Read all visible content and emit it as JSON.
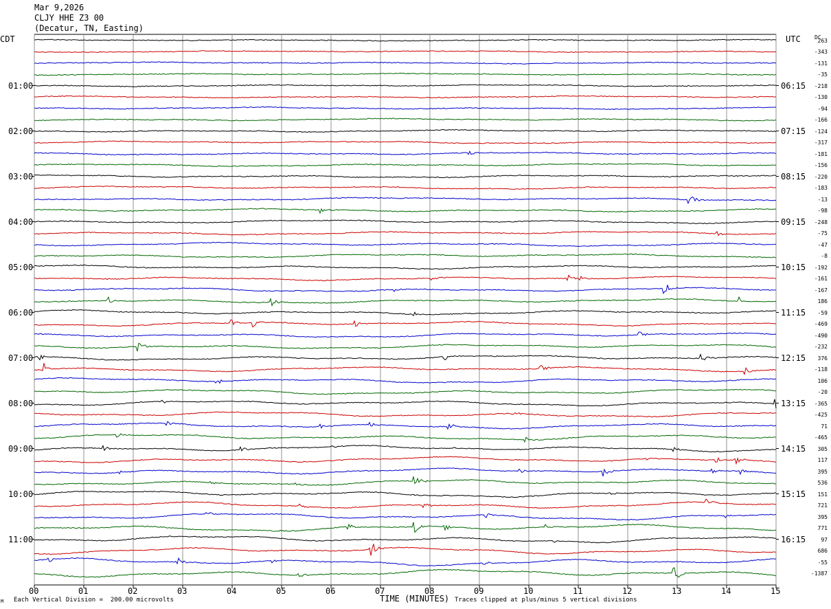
{
  "header": {
    "date": "Mar 9,2026",
    "station": "CLJY HHE Z3 00",
    "location": "(Decatur, TN, Easting)"
  },
  "left_tz": "CDT",
  "right_tz": "UTC",
  "dc_label": "DC",
  "footer": {
    "scale_note": "Each Vertical Division =  200.00 microvolts",
    "clip_note": "Traces clipped at plus/minus 5 vertical divisions",
    "mark": "M"
  },
  "colors": {
    "trace_cycle": [
      "#000000",
      "#cc0000",
      "#0000cc",
      "#006600"
    ],
    "grid": "#909090"
  },
  "chart_data": {
    "type": "line",
    "xlabel": "TIME (MINUTES)",
    "x_ticks": [
      "00",
      "01",
      "02",
      "03",
      "04",
      "05",
      "06",
      "07",
      "08",
      "09",
      "10",
      "11",
      "12",
      "13",
      "14",
      "15"
    ],
    "xlim": [
      0,
      15
    ],
    "left_hour_labels": [
      "01:00",
      "02:00",
      "03:00",
      "04:00",
      "05:00",
      "06:00",
      "07:00",
      "08:00",
      "09:00",
      "10:00",
      "11:00"
    ],
    "right_hour_labels": [
      "06:15",
      "07:15",
      "08:15",
      "09:15",
      "10:15",
      "11:15",
      "12:15",
      "13:15",
      "14:15",
      "15:15",
      "16:15"
    ],
    "dc_offsets": [
      "263",
      "-343",
      "-131",
      "-35",
      "-218",
      "-130",
      "-94",
      "-166",
      "-124",
      "-317",
      "-181",
      "-156",
      "-220",
      "-183",
      "-13",
      "-98",
      "-248",
      "-75",
      "-47",
      "-8",
      "-192",
      "-161",
      "-167",
      "186",
      "-59",
      "-469",
      "-490",
      "-232",
      "376",
      "-118",
      "106",
      "-20",
      "-365",
      "-425",
      "71",
      "-465",
      "305",
      "117",
      "395",
      "536",
      "151",
      "721",
      "395",
      "771",
      "97",
      "686",
      "-55",
      "-1387"
    ],
    "events": [
      {
        "trace": 10,
        "minute": 8.8,
        "amp": 0.5
      },
      {
        "trace": 14,
        "minute": 13.25,
        "amp": 1.2
      },
      {
        "trace": 15,
        "minute": 5.8,
        "amp": 0.6
      },
      {
        "trace": 17,
        "minute": 13.8,
        "amp": 0.6
      },
      {
        "trace": 21,
        "minute": 8.0,
        "amp": 0.5
      },
      {
        "trace": 21,
        "minute": 10.8,
        "amp": 0.5
      },
      {
        "trace": 21,
        "minute": 11.05,
        "amp": 0.4
      },
      {
        "trace": 22,
        "minute": 7.3,
        "amp": 0.6
      },
      {
        "trace": 22,
        "minute": 12.75,
        "amp": 1.0
      },
      {
        "trace": 23,
        "minute": 1.5,
        "amp": 0.6
      },
      {
        "trace": 23,
        "minute": 4.8,
        "amp": 0.6
      },
      {
        "trace": 23,
        "minute": 14.25,
        "amp": 0.7
      },
      {
        "trace": 24,
        "minute": 7.7,
        "amp": 0.4
      },
      {
        "trace": 25,
        "minute": 4.0,
        "amp": 0.5
      },
      {
        "trace": 25,
        "minute": 4.45,
        "amp": 0.7
      },
      {
        "trace": 25,
        "minute": 6.5,
        "amp": 0.6
      },
      {
        "trace": 26,
        "minute": 12.25,
        "amp": 0.7
      },
      {
        "trace": 27,
        "minute": 2.1,
        "amp": 1.0
      },
      {
        "trace": 28,
        "minute": 0.1,
        "amp": 0.5
      },
      {
        "trace": 28,
        "minute": 8.3,
        "amp": 0.6
      },
      {
        "trace": 28,
        "minute": 13.5,
        "amp": 0.8
      },
      {
        "trace": 29,
        "minute": 0.2,
        "amp": 1.0
      },
      {
        "trace": 29,
        "minute": 10.25,
        "amp": 0.5
      },
      {
        "trace": 29,
        "minute": 14.4,
        "amp": 0.5
      },
      {
        "trace": 30,
        "minute": 3.7,
        "amp": 0.6
      },
      {
        "trace": 32,
        "minute": 2.6,
        "amp": 0.4
      },
      {
        "trace": 32,
        "minute": 15.0,
        "amp": 0.8
      },
      {
        "trace": 33,
        "minute": 9.7,
        "amp": 0.3
      },
      {
        "trace": 34,
        "minute": 2.7,
        "amp": 0.5
      },
      {
        "trace": 34,
        "minute": 5.8,
        "amp": 0.5
      },
      {
        "trace": 34,
        "minute": 6.8,
        "amp": 0.5
      },
      {
        "trace": 34,
        "minute": 8.4,
        "amp": 0.7
      },
      {
        "trace": 35,
        "minute": 1.7,
        "amp": 0.4
      },
      {
        "trace": 35,
        "minute": 9.95,
        "amp": 0.6
      },
      {
        "trace": 36,
        "minute": 1.4,
        "amp": 0.5
      },
      {
        "trace": 36,
        "minute": 4.2,
        "amp": 0.5
      },
      {
        "trace": 36,
        "minute": 6.05,
        "amp": 0.3
      },
      {
        "trace": 36,
        "minute": 8.5,
        "amp": 0.3
      },
      {
        "trace": 36,
        "minute": 12.95,
        "amp": 0.4
      },
      {
        "trace": 37,
        "minute": 12.4,
        "amp": 0.3
      },
      {
        "trace": 37,
        "minute": 13.8,
        "amp": 0.6
      },
      {
        "trace": 37,
        "minute": 14.2,
        "amp": 0.7
      },
      {
        "trace": 38,
        "minute": 1.7,
        "amp": 0.4
      },
      {
        "trace": 38,
        "minute": 9.8,
        "amp": 0.4
      },
      {
        "trace": 38,
        "minute": 11.5,
        "amp": 0.9
      },
      {
        "trace": 38,
        "minute": 13.7,
        "amp": 0.4
      },
      {
        "trace": 38,
        "minute": 14.3,
        "amp": 0.6
      },
      {
        "trace": 39,
        "minute": 3.55,
        "amp": 0.4
      },
      {
        "trace": 39,
        "minute": 5.3,
        "amp": 0.3
      },
      {
        "trace": 39,
        "minute": 7.7,
        "amp": 0.8
      },
      {
        "trace": 40,
        "minute": 11.6,
        "amp": 0.6
      },
      {
        "trace": 41,
        "minute": 5.4,
        "amp": 0.4
      },
      {
        "trace": 41,
        "minute": 7.9,
        "amp": 0.4
      },
      {
        "trace": 41,
        "minute": 13.6,
        "amp": 0.7
      },
      {
        "trace": 42,
        "minute": 3.5,
        "amp": 0.4
      },
      {
        "trace": 42,
        "minute": 9.15,
        "amp": 0.4
      },
      {
        "trace": 42,
        "minute": 14.0,
        "amp": 0.3
      },
      {
        "trace": 43,
        "minute": 5.0,
        "amp": 0.3
      },
      {
        "trace": 43,
        "minute": 6.35,
        "amp": 0.6
      },
      {
        "trace": 43,
        "minute": 7.7,
        "amp": 0.9
      },
      {
        "trace": 43,
        "minute": 8.3,
        "amp": 0.8
      },
      {
        "trace": 43,
        "minute": 10.35,
        "amp": 0.5
      },
      {
        "trace": 44,
        "minute": 10.5,
        "amp": 0.3
      },
      {
        "trace": 45,
        "minute": 6.8,
        "amp": 2.2
      },
      {
        "trace": 46,
        "minute": 0.3,
        "amp": 0.4
      },
      {
        "trace": 46,
        "minute": 2.9,
        "amp": 0.7
      },
      {
        "trace": 46,
        "minute": 4.8,
        "amp": 0.4
      },
      {
        "trace": 46,
        "minute": 9.1,
        "amp": 0.3
      },
      {
        "trace": 47,
        "minute": 5.35,
        "amp": 0.6
      },
      {
        "trace": 47,
        "minute": 12.95,
        "amp": 1.4
      }
    ]
  }
}
